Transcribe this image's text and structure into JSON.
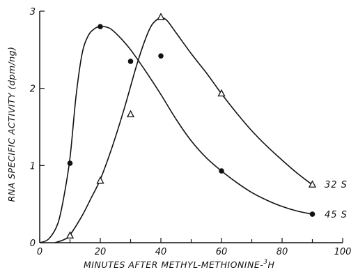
{
  "chart_data": {
    "type": "scatter",
    "xlabel": "MINUTES AFTER METHYL-METHIONINE-",
    "xlabel_superscript": "3",
    "xlabel_suffix": "H",
    "ylabel": "RNA SPECIFIC ACTIVITY (dpm/ng)",
    "xlim": [
      0,
      100
    ],
    "ylim": [
      0,
      3
    ],
    "x_ticks": [
      0,
      20,
      40,
      60,
      80,
      100
    ],
    "y_ticks": [
      0,
      1,
      2,
      3
    ],
    "grid": false,
    "legend": "none (series labeled at line ends)",
    "series": [
      {
        "name": "45 S",
        "marker": "filled-circle",
        "points": [
          [
            10,
            1.03
          ],
          [
            20,
            2.8
          ],
          [
            30,
            2.35
          ],
          [
            40,
            2.42
          ],
          [
            60,
            0.93
          ],
          [
            90,
            0.37
          ]
        ],
        "curve": [
          [
            0,
            0
          ],
          [
            3,
            0.05
          ],
          [
            6,
            0.25
          ],
          [
            8,
            0.6
          ],
          [
            10,
            1.1
          ],
          [
            12,
            1.9
          ],
          [
            14,
            2.45
          ],
          [
            16,
            2.68
          ],
          [
            18,
            2.77
          ],
          [
            20,
            2.8
          ],
          [
            23,
            2.78
          ],
          [
            26,
            2.68
          ],
          [
            30,
            2.5
          ],
          [
            35,
            2.22
          ],
          [
            40,
            1.92
          ],
          [
            45,
            1.6
          ],
          [
            50,
            1.32
          ],
          [
            55,
            1.1
          ],
          [
            60,
            0.93
          ],
          [
            65,
            0.78
          ],
          [
            70,
            0.65
          ],
          [
            75,
            0.55
          ],
          [
            80,
            0.47
          ],
          [
            85,
            0.41
          ],
          [
            90,
            0.37
          ]
        ]
      },
      {
        "name": "32 S",
        "marker": "open-triangle",
        "points": [
          [
            10,
            0.09
          ],
          [
            20,
            0.8
          ],
          [
            30,
            1.66
          ],
          [
            40,
            2.92
          ],
          [
            60,
            1.93
          ],
          [
            90,
            0.75
          ]
        ],
        "curve": [
          [
            5,
            0
          ],
          [
            8,
            0.04
          ],
          [
            10,
            0.1
          ],
          [
            14,
            0.35
          ],
          [
            17,
            0.58
          ],
          [
            20,
            0.82
          ],
          [
            24,
            1.25
          ],
          [
            28,
            1.75
          ],
          [
            32,
            2.3
          ],
          [
            35,
            2.65
          ],
          [
            37,
            2.82
          ],
          [
            39,
            2.9
          ],
          [
            40,
            2.92
          ],
          [
            42,
            2.88
          ],
          [
            45,
            2.72
          ],
          [
            50,
            2.45
          ],
          [
            55,
            2.2
          ],
          [
            60,
            1.93
          ],
          [
            65,
            1.68
          ],
          [
            70,
            1.45
          ],
          [
            75,
            1.25
          ],
          [
            80,
            1.07
          ],
          [
            85,
            0.9
          ],
          [
            90,
            0.75
          ]
        ]
      }
    ]
  },
  "colors": {
    "ink": "#111111",
    "background": "#ffffff"
  }
}
